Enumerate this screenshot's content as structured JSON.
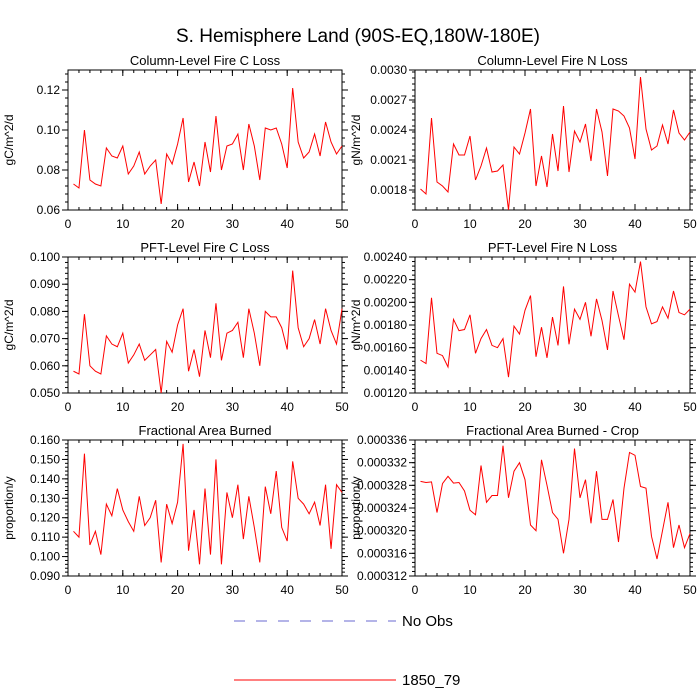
{
  "title": "S. Hemisphere Land (90S-EQ,180W-180E)",
  "legend": [
    {
      "label": "No Obs",
      "color": "#6a6ad0",
      "dash": true
    },
    {
      "label": "1850_79",
      "color": "#ff0000",
      "dash": false
    }
  ],
  "chart_data": [
    {
      "type": "line",
      "title": "Column-Level Fire C Loss",
      "ylabel": "gC/m^2/d",
      "xlim": [
        0,
        50
      ],
      "ylim": [
        0.06,
        0.13
      ],
      "xticks": [
        0,
        10,
        20,
        30,
        40,
        50
      ],
      "xtick_labels": [
        "0",
        "10",
        "20",
        "30",
        "40",
        "50"
      ],
      "yticks": [
        0.06,
        0.08,
        0.1,
        0.12
      ],
      "ytick_labels": [
        "0.06",
        "0.08",
        "0.10",
        "0.12"
      ],
      "series": [
        {
          "name": "1850_79",
          "x_start": 1,
          "values": [
            0.073,
            0.071,
            0.1,
            0.075,
            0.073,
            0.072,
            0.091,
            0.087,
            0.086,
            0.092,
            0.078,
            0.082,
            0.089,
            0.078,
            0.082,
            0.085,
            0.063,
            0.088,
            0.083,
            0.093,
            0.106,
            0.074,
            0.084,
            0.072,
            0.094,
            0.079,
            0.107,
            0.08,
            0.092,
            0.093,
            0.098,
            0.08,
            0.103,
            0.092,
            0.075,
            0.101,
            0.1,
            0.101,
            0.093,
            0.081,
            0.121,
            0.094,
            0.086,
            0.089,
            0.098,
            0.087,
            0.104,
            0.094,
            0.088,
            0.092
          ]
        }
      ]
    },
    {
      "type": "line",
      "title": "Column-Level Fire N Loss",
      "ylabel": "gN/m^2/d",
      "xlim": [
        0,
        50
      ],
      "ylim": [
        0.0016,
        0.003
      ],
      "xticks": [
        0,
        10,
        20,
        30,
        40,
        50
      ],
      "xtick_labels": [
        "0",
        "10",
        "20",
        "30",
        "40",
        "50"
      ],
      "yticks": [
        0.0018,
        0.0021,
        0.0024,
        0.0027,
        0.003
      ],
      "ytick_labels": [
        "0.0018",
        "0.0021",
        "0.0024",
        "0.0027",
        "0.0030"
      ],
      "series": [
        {
          "name": "1850_79",
          "x_start": 1,
          "values": [
            0.00181,
            0.00176,
            0.00252,
            0.00188,
            0.00184,
            0.00178,
            0.00226,
            0.00215,
            0.00215,
            0.00234,
            0.0019,
            0.00204,
            0.00222,
            0.00198,
            0.00199,
            0.00205,
            0.0016,
            0.00223,
            0.00216,
            0.00237,
            0.00261,
            0.00184,
            0.00214,
            0.00183,
            0.00236,
            0.00199,
            0.00264,
            0.00198,
            0.00239,
            0.00228,
            0.00246,
            0.00209,
            0.00261,
            0.00238,
            0.00194,
            0.00261,
            0.00259,
            0.00254,
            0.00242,
            0.00211,
            0.00293,
            0.00241,
            0.0022,
            0.00224,
            0.00245,
            0.00226,
            0.0026,
            0.00237,
            0.0023,
            0.00238
          ]
        }
      ]
    },
    {
      "type": "line",
      "title": "PFT-Level Fire C Loss",
      "ylabel": "gC/m^2/d",
      "xlim": [
        0,
        50
      ],
      "ylim": [
        0.05,
        0.1
      ],
      "xticks": [
        0,
        10,
        20,
        30,
        40,
        50
      ],
      "xtick_labels": [
        "0",
        "10",
        "20",
        "30",
        "40",
        "50"
      ],
      "yticks": [
        0.05,
        0.06,
        0.07,
        0.08,
        0.09,
        0.1
      ],
      "ytick_labels": [
        "0.050",
        "0.060",
        "0.070",
        "0.080",
        "0.090",
        "0.100"
      ],
      "series": [
        {
          "name": "1850_79",
          "x_start": 1,
          "values": [
            0.058,
            0.057,
            0.079,
            0.06,
            0.058,
            0.057,
            0.071,
            0.068,
            0.067,
            0.072,
            0.061,
            0.064,
            0.068,
            0.062,
            0.064,
            0.066,
            0.05,
            0.069,
            0.065,
            0.075,
            0.081,
            0.058,
            0.066,
            0.056,
            0.073,
            0.063,
            0.083,
            0.062,
            0.072,
            0.073,
            0.076,
            0.063,
            0.081,
            0.072,
            0.06,
            0.08,
            0.078,
            0.078,
            0.074,
            0.066,
            0.095,
            0.074,
            0.067,
            0.07,
            0.077,
            0.068,
            0.081,
            0.073,
            0.068,
            0.081
          ]
        }
      ]
    },
    {
      "type": "line",
      "title": "PFT-Level Fire N Loss",
      "ylabel": "gN/m^2/d",
      "xlim": [
        0,
        50
      ],
      "ylim": [
        0.0012,
        0.0024
      ],
      "xticks": [
        0,
        10,
        20,
        30,
        40,
        50
      ],
      "xtick_labels": [
        "0",
        "10",
        "20",
        "30",
        "40",
        "50"
      ],
      "yticks": [
        0.0012,
        0.0014,
        0.0016,
        0.0018,
        0.002,
        0.0022,
        0.0024
      ],
      "ytick_labels": [
        "0.00120",
        "0.00140",
        "0.00160",
        "0.00180",
        "0.00200",
        "0.00220",
        "0.00240"
      ],
      "series": [
        {
          "name": "1850_79",
          "x_start": 1,
          "values": [
            0.00149,
            0.00146,
            0.00204,
            0.00155,
            0.00153,
            0.00143,
            0.00185,
            0.00175,
            0.00176,
            0.00189,
            0.00155,
            0.00168,
            0.00176,
            0.00162,
            0.0016,
            0.00168,
            0.00134,
            0.00179,
            0.00172,
            0.00193,
            0.00206,
            0.00152,
            0.00178,
            0.00151,
            0.00187,
            0.00162,
            0.00214,
            0.00163,
            0.00194,
            0.00185,
            0.002,
            0.0017,
            0.00203,
            0.00184,
            0.00158,
            0.0021,
            0.00188,
            0.00167,
            0.00216,
            0.00209,
            0.00236,
            0.00196,
            0.00181,
            0.00183,
            0.00196,
            0.00186,
            0.0021,
            0.00191,
            0.00189,
            0.00194
          ]
        }
      ]
    },
    {
      "type": "line",
      "title": "Fractional Area Burned",
      "ylabel": "proportion/y",
      "xlim": [
        0,
        50
      ],
      "ylim": [
        0.09,
        0.16
      ],
      "xticks": [
        0,
        10,
        20,
        30,
        40,
        50
      ],
      "xtick_labels": [
        "0",
        "10",
        "20",
        "30",
        "40",
        "50"
      ],
      "yticks": [
        0.09,
        0.1,
        0.11,
        0.12,
        0.13,
        0.14,
        0.15,
        0.16
      ],
      "ytick_labels": [
        "0.090",
        "0.100",
        "0.110",
        "0.120",
        "0.130",
        "0.140",
        "0.150",
        "0.160"
      ],
      "series": [
        {
          "name": "1850_79",
          "x_start": 1,
          "values": [
            0.113,
            0.11,
            0.153,
            0.106,
            0.113,
            0.101,
            0.127,
            0.121,
            0.135,
            0.124,
            0.118,
            0.113,
            0.131,
            0.116,
            0.12,
            0.129,
            0.097,
            0.127,
            0.117,
            0.128,
            0.158,
            0.103,
            0.124,
            0.096,
            0.135,
            0.101,
            0.15,
            0.096,
            0.133,
            0.12,
            0.137,
            0.109,
            0.131,
            0.115,
            0.097,
            0.136,
            0.122,
            0.144,
            0.115,
            0.108,
            0.149,
            0.13,
            0.127,
            0.122,
            0.128,
            0.116,
            0.137,
            0.104,
            0.137,
            0.133
          ]
        }
      ]
    },
    {
      "type": "line",
      "title": "Fractional Area Burned - Crop",
      "ylabel": "proportion/y",
      "xlim": [
        0,
        50
      ],
      "ylim": [
        0.000312,
        0.000336
      ],
      "xticks": [
        0,
        10,
        20,
        30,
        40,
        50
      ],
      "xtick_labels": [
        "0",
        "10",
        "20",
        "30",
        "40",
        "50"
      ],
      "yticks": [
        0.000312,
        0.000316,
        0.00032,
        0.000324,
        0.000328,
        0.000332,
        0.000336
      ],
      "ytick_labels": [
        "0.000312",
        "0.000316",
        "0.000320",
        "0.000324",
        "0.000328",
        "0.000332",
        "0.000336"
      ],
      "series": [
        {
          "name": "1850_79",
          "x_start": 1,
          "values": [
            0.0003287,
            0.0003285,
            0.0003286,
            0.0003232,
            0.0003283,
            0.0003296,
            0.0003284,
            0.0003285,
            0.000327,
            0.0003236,
            0.0003228,
            0.0003315,
            0.000325,
            0.0003262,
            0.0003262,
            0.000335,
            0.0003258,
            0.0003305,
            0.000332,
            0.000329,
            0.000321,
            0.00032,
            0.0003325,
            0.000328,
            0.0003232,
            0.000322,
            0.000316,
            0.000322,
            0.0003345,
            0.0003258,
            0.000329,
            0.0003213,
            0.0003305,
            0.000322,
            0.000322,
            0.0003255,
            0.000318,
            0.0003275,
            0.0003338,
            0.0003333,
            0.0003278,
            0.0003275,
            0.000319,
            0.000315,
            0.00032,
            0.000325,
            0.000317,
            0.000321,
            0.000317,
            0.0003195
          ]
        }
      ]
    }
  ]
}
